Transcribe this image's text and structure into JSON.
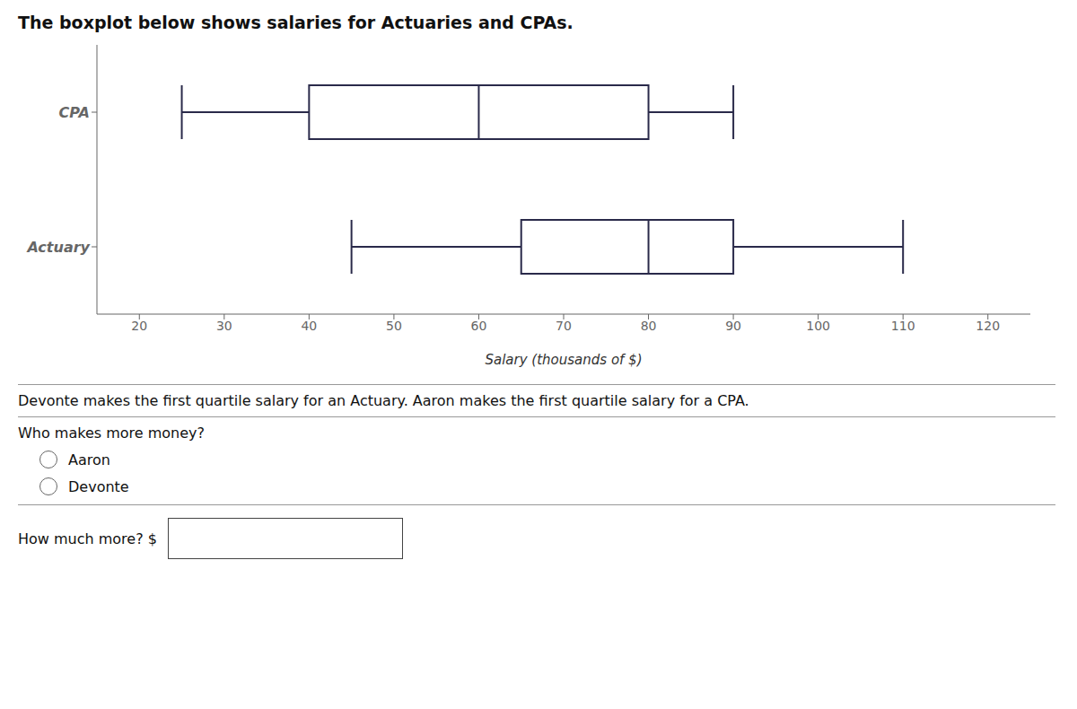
{
  "chart_data": {
    "type": "box",
    "title": "The boxplot below shows salaries for Actuaries and CPAs.",
    "xlabel": "Salary (thousands of $)",
    "xlim": [
      15,
      125
    ],
    "xticks": [
      20,
      30,
      40,
      50,
      60,
      70,
      80,
      90,
      100,
      110,
      120
    ],
    "categories": [
      "CPA",
      "Actuary"
    ],
    "values": [
      {
        "min": 25,
        "q1": 40,
        "median": 60,
        "q3": 80,
        "max": 90
      },
      {
        "min": 45,
        "q1": 65,
        "median": 80,
        "q3": 90,
        "max": 110
      }
    ],
    "color": "#2a2a4a",
    "grid": false,
    "annotations": [
      "Devonte makes the first quartile salary for an Actuary. Aaron makes the first quartile salary for a CPA.",
      "Who makes more money?",
      "Aaron",
      "Devonte",
      "How much more? $"
    ]
  }
}
